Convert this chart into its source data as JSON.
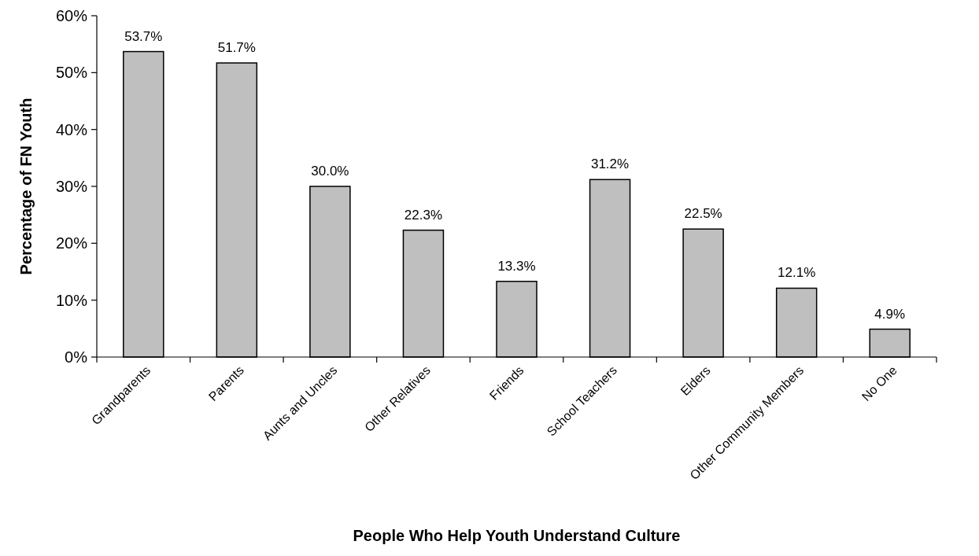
{
  "chart_data": {
    "type": "bar",
    "xlabel": "People Who Help Youth Understand Culture",
    "ylabel": "Percentage of FN Youth",
    "categories": [
      "Grandparents",
      "Parents",
      "Aunts and Uncles",
      "Other Relatives",
      "Friends",
      "School Teachers",
      "Elders",
      "Other Community Members",
      "No One"
    ],
    "values": [
      53.7,
      51.7,
      30.0,
      22.3,
      13.3,
      31.2,
      22.5,
      12.1,
      4.9
    ],
    "value_labels": [
      "53.7%",
      "51.7%",
      "30.0%",
      "22.3%",
      "13.3%",
      "31.2%",
      "22.5%",
      "12.1%",
      "4.9%"
    ],
    "color": "#bfbfbf",
    "ylim": [
      0,
      60
    ],
    "yticks": [
      {
        "value": 0,
        "label": "0%"
      },
      {
        "value": 10,
        "label": "10%"
      },
      {
        "value": 20,
        "label": "20%"
      },
      {
        "value": 30,
        "label": "30%"
      },
      {
        "value": 40,
        "label": "40%"
      },
      {
        "value": 50,
        "label": "50%"
      },
      {
        "value": 60,
        "label": "60%"
      }
    ],
    "grid": false
  }
}
